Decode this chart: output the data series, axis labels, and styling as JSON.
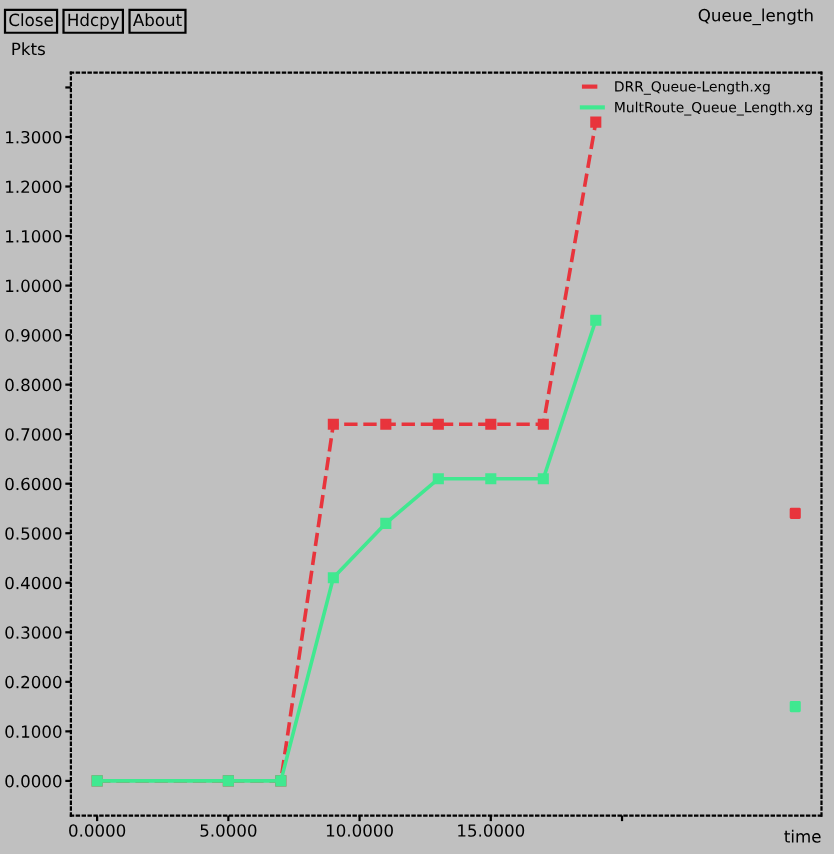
{
  "chart_data": {
    "type": "line",
    "title": "Queue_length",
    "ylabel": "Pkts",
    "xlabel": "time",
    "annotations": [
      "Close",
      "Hdcpy",
      "About"
    ],
    "series": [
      {
        "name": "DRR_Queue-Length.xg",
        "color": "#e8343c",
        "line_style": "dashed",
        "x": [
          0,
          5,
          7,
          9,
          11,
          13,
          15,
          17,
          19
        ],
        "values": [
          0,
          0,
          0,
          0.72,
          0.72,
          0.72,
          0.72,
          0.72,
          1.33
        ]
      },
      {
        "name": "MultRoute_Queue_Length.xg",
        "color": "#40e890",
        "line_style": "solid",
        "x": [
          0,
          5,
          7,
          9,
          11,
          13,
          15,
          17,
          19
        ],
        "values": [
          0,
          0,
          0,
          0.41,
          0.52,
          0.61,
          0.61,
          0.61,
          0.93
        ]
      },
      {
        "type": "scatter",
        "color": "#e8343c",
        "x": [
          26.6
        ],
        "values": [
          0.54
        ]
      },
      {
        "type": "scatter",
        "color": "#40e890",
        "x": [
          26.6
        ],
        "values": [
          0.15
        ]
      }
    ],
    "marker": "square",
    "xlim": [
      -1,
      27.6
    ],
    "ylim": [
      -0.07,
      1.43
    ],
    "xticks": [
      {
        "value": 0,
        "label": "0.0000"
      },
      {
        "value": 5,
        "label": "5.0000"
      },
      {
        "value": 10,
        "label": "10.0000"
      },
      {
        "value": 15,
        "label": "15.0000"
      },
      {
        "value": 20,
        "label": null
      }
    ],
    "yticks": [
      {
        "value": 0,
        "label": "0.0000"
      },
      {
        "value": 0.1,
        "label": "0.1000"
      },
      {
        "value": 0.2,
        "label": "0.2000"
      },
      {
        "value": 0.3,
        "label": "0.3000"
      },
      {
        "value": 0.4,
        "label": "0.4000"
      },
      {
        "value": 0.5,
        "label": "0.5000"
      },
      {
        "value": 0.6,
        "label": "0.6000"
      },
      {
        "value": 0.7,
        "label": "0.7000"
      },
      {
        "value": 0.8,
        "label": "0.8000"
      },
      {
        "value": 0.9,
        "label": "0.9000"
      },
      {
        "value": 1.0,
        "label": "1.0000"
      },
      {
        "value": 1.1,
        "label": "1.1000"
      },
      {
        "value": 1.2,
        "label": "1.2000"
      },
      {
        "value": 1.3,
        "label": "1.3000"
      },
      {
        "value": 1.4,
        "label": null
      }
    ],
    "grid": false,
    "legend": "top right"
  }
}
